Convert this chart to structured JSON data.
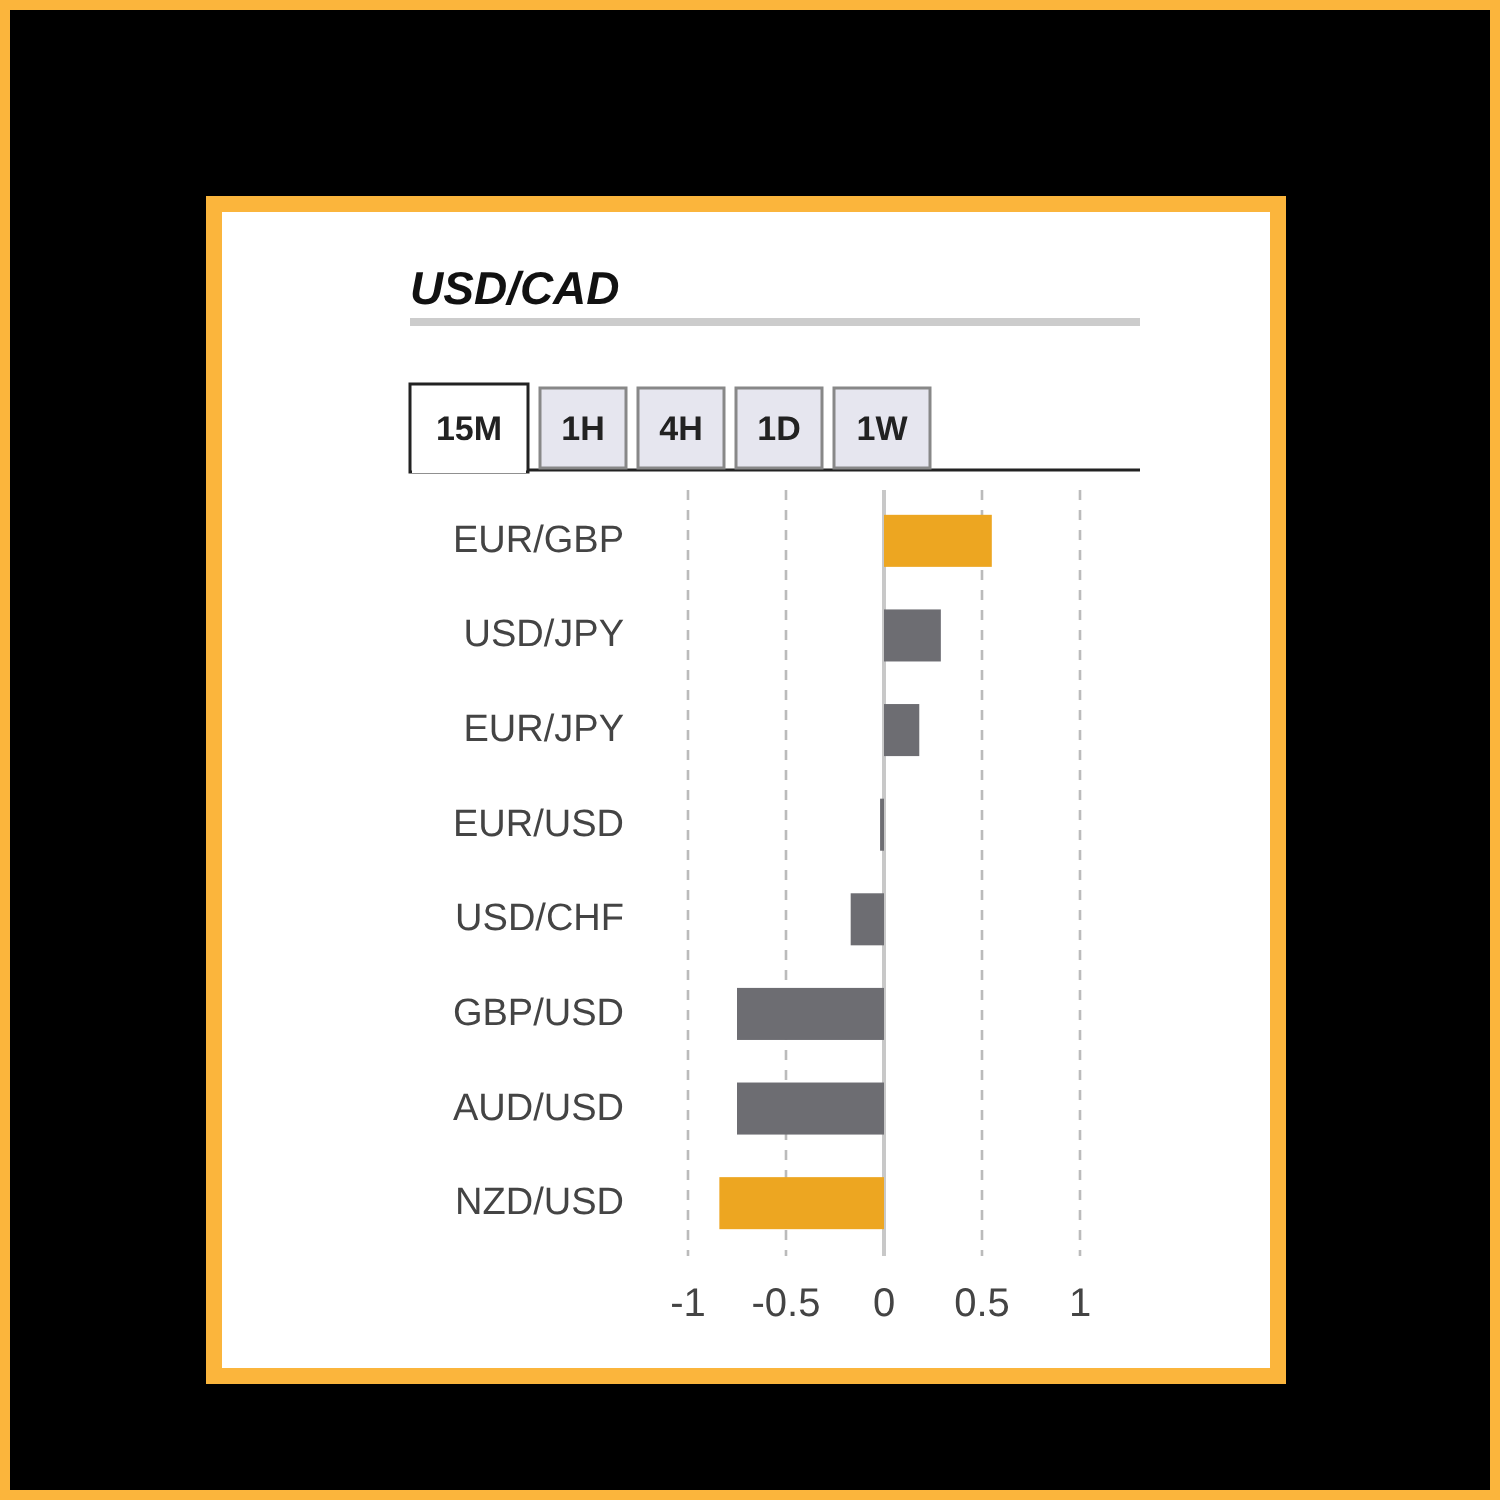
{
  "chart_data": {
    "type": "bar",
    "orientation": "horizontal",
    "title": "USD/CAD",
    "annotations": [
      "15M",
      "1H",
      "4H",
      "1D",
      "1W"
    ],
    "categories": [
      "EUR/GBP",
      "USD/JPY",
      "EUR/JPY",
      "EUR/USD",
      "USD/CHF",
      "GBP/USD",
      "AUD/USD",
      "NZD/USD"
    ],
    "values": [
      0.55,
      0.29,
      0.18,
      -0.02,
      -0.17,
      -0.75,
      -0.75,
      -0.84
    ],
    "colors": [
      "#eda621",
      "#6d6d72",
      "#6d6d72",
      "#6d6d72",
      "#6d6d72",
      "#6d6d72",
      "#6d6d72",
      "#eda621"
    ],
    "xlim": [
      -1,
      1
    ],
    "xticks": [
      -1,
      -0.5,
      0,
      0.5,
      1
    ],
    "grid": "x"
  }
}
